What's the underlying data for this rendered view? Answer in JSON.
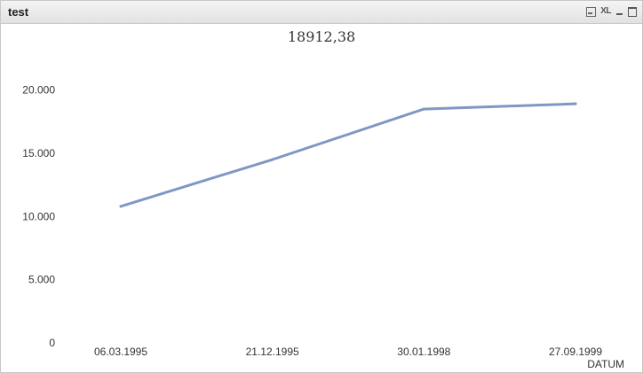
{
  "window": {
    "title": "test",
    "buttons": {
      "print_icon": "printer-icon",
      "xl_label": "XL",
      "minimize_icon": "minimize-icon",
      "maximize_icon": "maximize-icon"
    }
  },
  "chart_data": {
    "type": "line",
    "title": "18912,38",
    "xlabel": "DATUM",
    "ylabel": "",
    "categories": [
      "06.03.1995",
      "21.12.1995",
      "30.01.1998",
      "27.09.1999"
    ],
    "series": [
      {
        "color": "#7f98c3",
        "values": [
          10800,
          14500,
          18500,
          18912.38
        ]
      }
    ],
    "ylim": [
      0,
      22500
    ],
    "yticks": [
      {
        "value": 0,
        "label": "0"
      },
      {
        "value": 5000,
        "label": "5.000"
      },
      {
        "value": 10000,
        "label": "10.000"
      },
      {
        "value": 15000,
        "label": "15.000"
      },
      {
        "value": 20000,
        "label": "20.000"
      }
    ],
    "grid": false,
    "legend": "none"
  }
}
